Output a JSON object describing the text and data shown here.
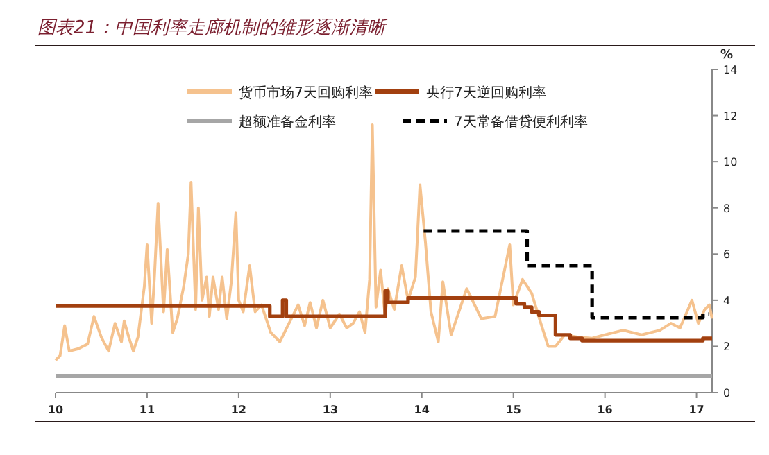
{
  "chart_data": {
    "type": "line",
    "title": "图表21：中国利率走廊机制的雏形逐渐清晰",
    "ylabel": "%",
    "legend": "top",
    "xlim": [
      2010,
      2017.17
    ],
    "xticks": [
      {
        "value": 2010,
        "label": "10"
      },
      {
        "value": 2011,
        "label": "11"
      },
      {
        "value": 2012,
        "label": "12"
      },
      {
        "value": 2013,
        "label": "13"
      },
      {
        "value": 2014,
        "label": "14"
      },
      {
        "value": 2015,
        "label": "15"
      },
      {
        "value": 2016,
        "label": "16"
      },
      {
        "value": 2017,
        "label": "17"
      }
    ],
    "ylim": [
      0,
      14
    ],
    "yticks": [
      0,
      2,
      4,
      6,
      8,
      10,
      12,
      14
    ],
    "series": [
      {
        "name": "货币市场7天回购利率",
        "color": "#f5c28e",
        "x": [
          2010.0,
          2010.05,
          2010.1,
          2010.15,
          2010.25,
          2010.35,
          2010.42,
          2010.5,
          2010.58,
          2010.65,
          2010.72,
          2010.75,
          2010.8,
          2010.85,
          2010.9,
          2010.97,
          2011.0,
          2011.05,
          2011.08,
          2011.12,
          2011.18,
          2011.22,
          2011.28,
          2011.33,
          2011.4,
          2011.45,
          2011.48,
          2011.53,
          2011.56,
          2011.6,
          2011.65,
          2011.68,
          2011.72,
          2011.78,
          2011.82,
          2011.87,
          2011.92,
          2011.97,
          2012.0,
          2012.05,
          2012.12,
          2012.18,
          2012.25,
          2012.35,
          2012.45,
          2012.55,
          2012.65,
          2012.72,
          2012.78,
          2012.85,
          2012.92,
          2013.0,
          2013.1,
          2013.18,
          2013.25,
          2013.32,
          2013.38,
          2013.43,
          2013.46,
          2013.5,
          2013.55,
          2013.6,
          2013.63,
          2013.7,
          2013.78,
          2013.85,
          2013.93,
          2013.98,
          2014.04,
          2014.1,
          2014.18,
          2014.23,
          2014.32,
          2014.49,
          2014.65,
          2014.8,
          2014.96,
          2015.0,
          2015.1,
          2015.2,
          2015.3,
          2015.38,
          2015.46,
          2015.56,
          2015.71,
          2015.86,
          2016.0,
          2016.2,
          2016.4,
          2016.6,
          2016.72,
          2016.82,
          2016.95,
          2017.02,
          2017.09,
          2017.14,
          2017.17
        ],
        "values": [
          1.4,
          1.6,
          2.9,
          1.8,
          1.9,
          2.1,
          3.3,
          2.4,
          1.8,
          3.0,
          2.2,
          3.1,
          2.4,
          1.8,
          2.4,
          4.6,
          6.4,
          3.0,
          5.0,
          8.2,
          3.5,
          6.2,
          2.6,
          3.2,
          4.6,
          6.0,
          9.1,
          3.6,
          8.0,
          4.0,
          5.0,
          3.3,
          5.0,
          3.6,
          5.0,
          3.2,
          4.8,
          7.8,
          4.0,
          3.5,
          5.5,
          3.5,
          3.8,
          2.6,
          2.2,
          3.0,
          3.8,
          2.9,
          3.9,
          2.8,
          4.0,
          2.8,
          3.4,
          2.8,
          3.0,
          3.5,
          2.6,
          4.9,
          11.6,
          3.7,
          5.3,
          3.3,
          4.5,
          3.6,
          5.5,
          4.0,
          5.0,
          9.0,
          6.5,
          3.5,
          2.2,
          4.8,
          2.5,
          4.5,
          3.2,
          3.3,
          6.4,
          3.8,
          4.9,
          4.3,
          3.0,
          2.0,
          2.0,
          2.5,
          2.4,
          2.35,
          2.5,
          2.7,
          2.5,
          2.7,
          3.0,
          2.8,
          4.0,
          3.0,
          3.6,
          3.8,
          3.2
        ]
      },
      {
        "name": "央行7天逆回购利率",
        "color": "#a2400f",
        "type": "step",
        "x": [
          2010.0,
          2012.34,
          2012.48,
          2012.52,
          2013.6,
          2013.63,
          2013.67,
          2013.85,
          2015.03,
          2015.12,
          2015.2,
          2015.28,
          2015.46,
          2015.62,
          2015.75,
          2017.07,
          2017.17
        ],
        "values": [
          3.75,
          3.3,
          4.0,
          3.3,
          4.4,
          3.9,
          3.9,
          4.1,
          3.85,
          3.7,
          3.5,
          3.35,
          2.5,
          2.35,
          2.25,
          2.35,
          2.35
        ]
      },
      {
        "name": "超额准备金利率",
        "color": "#a6a6a6",
        "x": [
          2010.0,
          2017.17
        ],
        "values": [
          0.72,
          0.72
        ]
      },
      {
        "name": "7天常备借贷便利利率",
        "color": "#000000",
        "type": "step",
        "line_style": "dashed",
        "x": [
          2014.02,
          2015.15,
          2015.86,
          2017.07,
          2017.14
        ],
        "values": [
          7.0,
          5.5,
          3.25,
          3.4,
          3.4
        ]
      }
    ]
  }
}
